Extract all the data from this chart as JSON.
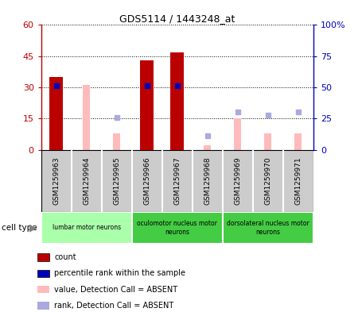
{
  "title": "GDS5114 / 1443248_at",
  "samples": [
    "GSM1259963",
    "GSM1259964",
    "GSM1259965",
    "GSM1259966",
    "GSM1259967",
    "GSM1259968",
    "GSM1259969",
    "GSM1259970",
    "GSM1259971"
  ],
  "count_values": [
    35,
    0,
    0,
    43,
    47,
    0,
    0,
    0,
    0
  ],
  "rank_values": [
    51,
    0,
    0,
    51,
    51,
    0,
    0,
    0,
    0
  ],
  "absent_value_bars": [
    0,
    31,
    8,
    0,
    1,
    2,
    15,
    8,
    8
  ],
  "absent_rank_dots": [
    0,
    0,
    26,
    0,
    0,
    11,
    30,
    28,
    30
  ],
  "cell_types": [
    {
      "label": "lumbar motor neurons",
      "start": 0,
      "end": 3
    },
    {
      "label": "oculomotor nucleus motor\nneurons",
      "start": 3,
      "end": 6
    },
    {
      "label": "dorsolateral nucleus motor\nneurons",
      "start": 6,
      "end": 9
    }
  ],
  "ylim_left": [
    0,
    60
  ],
  "ylim_right": [
    0,
    100
  ],
  "yticks_left": [
    0,
    15,
    30,
    45,
    60
  ],
  "yticks_right": [
    0,
    25,
    50,
    75,
    100
  ],
  "ytick_labels_left": [
    "0",
    "15",
    "30",
    "45",
    "60"
  ],
  "ytick_labels_right": [
    "0",
    "25",
    "50",
    "75",
    "100%"
  ],
  "bar_color_red": "#bb0000",
  "bar_color_pink": "#ffbbbb",
  "dot_color_blue": "#0000bb",
  "dot_color_lightblue": "#aaaadd",
  "cell_type_bg_light": "#aaffaa",
  "cell_type_bg_dark": "#44cc44",
  "tick_bg": "#cccccc",
  "legend_items": [
    {
      "color": "#bb0000",
      "label": "count"
    },
    {
      "color": "#0000bb",
      "label": "percentile rank within the sample"
    },
    {
      "color": "#ffbbbb",
      "label": "value, Detection Call = ABSENT"
    },
    {
      "color": "#aaaadd",
      "label": "rank, Detection Call = ABSENT"
    }
  ]
}
